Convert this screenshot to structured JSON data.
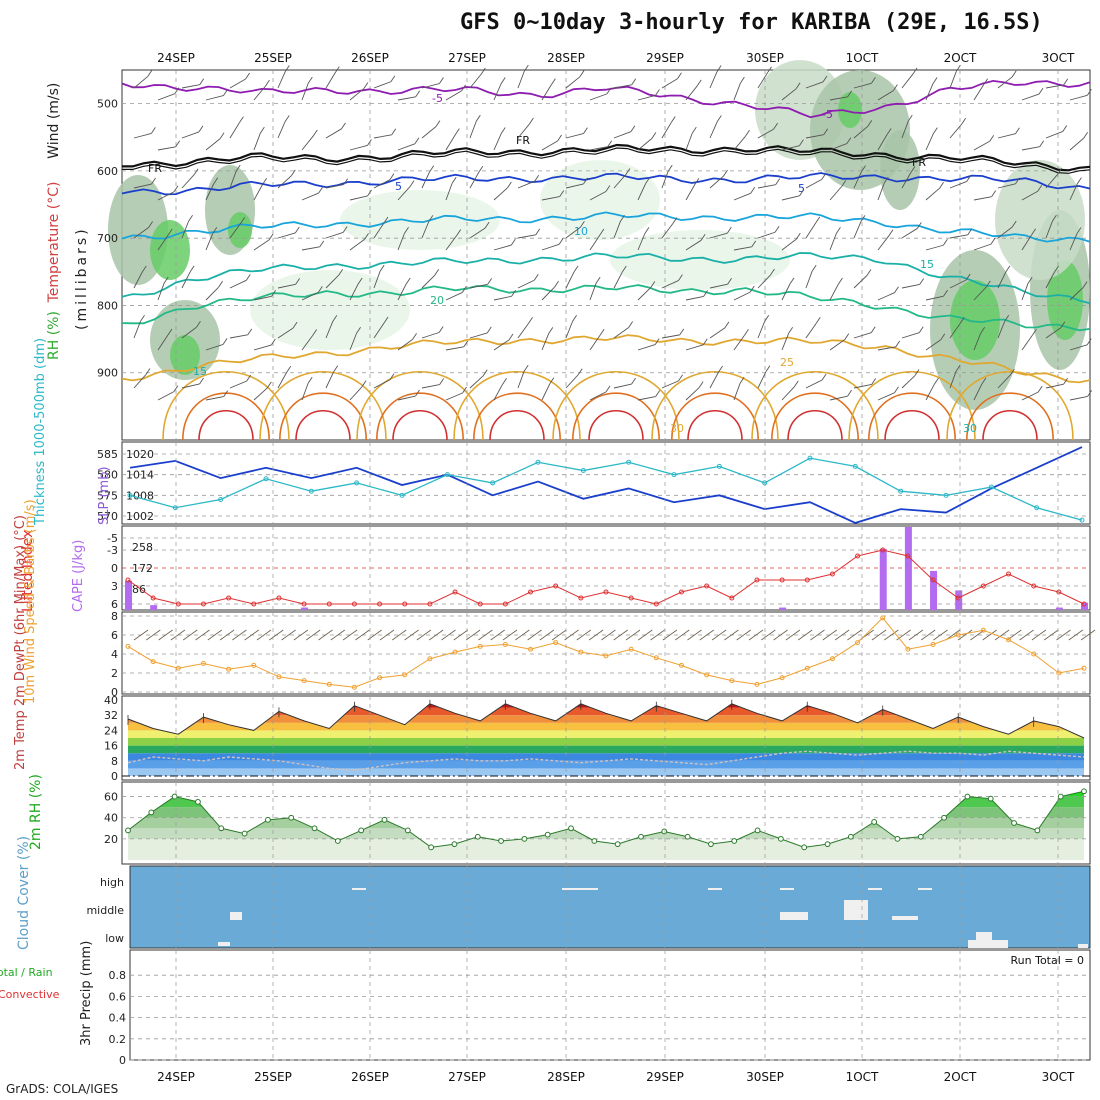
{
  "title": "GFS 0~10day 3-hourly for KARIBA (29E, 16.5S)",
  "credit": "GrADS: COLA/IGES",
  "dates": [
    "24SEP",
    "25SEP",
    "26SEP",
    "27SEP",
    "28SEP",
    "29SEP",
    "30SEP",
    "1OCT",
    "2OCT",
    "3OCT"
  ],
  "colors": {
    "wind_barb": "#555555",
    "rh_light": "#e8f4e6",
    "rh_mid": "#c8dcc8",
    "rh_dark": "#a8c4a8",
    "rh_green": "#66cc66",
    "slp": "#1a3fcc",
    "thickness": "#2bb8c8",
    "lifted_index": "#e03030",
    "cape": "#b36bf0",
    "wind10": "#f0a030",
    "rh2m": "#33cc33",
    "cloud": "#6aaad6",
    "cloud_patch": "#f0f0f0"
  },
  "chart_data": [
    {
      "panel": "upper-air",
      "type": "heatmap",
      "ylabel_parts": [
        "RH (%)",
        "Temperature (°C)",
        "Wind (m/s)"
      ],
      "ylabel_units": "(millibars)",
      "yticks": [
        500,
        600,
        700,
        800,
        900
      ],
      "ylim": [
        1000,
        450
      ],
      "contour_labels": [
        {
          "text": "-5",
          "level": "480"
        },
        {
          "text": "-5",
          "level": "510"
        },
        {
          "text": "FR",
          "level": "565"
        },
        {
          "text": "FR",
          "level": "560"
        },
        {
          "text": "FR",
          "level": "590"
        },
        {
          "text": "5",
          "level": "610"
        },
        {
          "text": "5",
          "level": "615"
        },
        {
          "text": "10",
          "level": "680"
        },
        {
          "text": "15",
          "level": "830"
        },
        {
          "text": "15",
          "level": "725"
        },
        {
          "text": "20",
          "level": "775"
        },
        {
          "text": "25",
          "level": "860"
        },
        {
          "text": "30",
          "level": "940"
        },
        {
          "text": "30",
          "level": "940"
        }
      ],
      "temp_contours": [
        {
          "label": "-5",
          "color": "#8e1cb0",
          "levels": [
            470,
            475,
            485,
            478,
            482,
            480,
            486,
            478,
            490,
            500,
            520,
            505,
            478,
            470,
            468
          ]
        },
        {
          "label": "FR",
          "color": "#111111",
          "levels": [
            590,
            585,
            580,
            580,
            577,
            572,
            570,
            568,
            568,
            566,
            572,
            575,
            580,
            590,
            595
          ]
        },
        {
          "label": "5",
          "color": "#1a3fcc",
          "levels": [
            630,
            628,
            622,
            618,
            614,
            612,
            610,
            610,
            612,
            612,
            610,
            608,
            612,
            615,
            625
          ]
        },
        {
          "label": "10",
          "color": "#19a4dc",
          "levels": [
            700,
            690,
            684,
            678,
            676,
            672,
            670,
            668,
            668,
            668,
            670,
            675,
            690,
            700,
            700
          ]
        },
        {
          "label": "15",
          "color": "#1ab0a8",
          "levels": [
            790,
            760,
            748,
            740,
            738,
            735,
            730,
            728,
            730,
            730,
            728,
            730,
            760,
            780,
            790
          ]
        },
        {
          "label": "20",
          "color": "#22b888",
          "levels": [
            830,
            800,
            790,
            780,
            782,
            775,
            775,
            775,
            778,
            776,
            790,
            800,
            820,
            830,
            830
          ]
        },
        {
          "label": "25",
          "color": "#e0a830",
          "levels": [
            910,
            890,
            880,
            870,
            860,
            855,
            850,
            850,
            852,
            852,
            855,
            860,
            880,
            900,
            910
          ]
        }
      ]
    },
    {
      "panel": "slp-thickness",
      "type": "line",
      "ylabel_left": "Thickness 1000-500mb (dm)",
      "ylabel_right": "SLP (mb)",
      "yticks_left": [
        570,
        575,
        580,
        585
      ],
      "yticks_right": [
        1002,
        1008,
        1014,
        1020
      ],
      "series": [
        {
          "name": "SLP",
          "values": [
            1016,
            1018,
            1013,
            1016,
            1013,
            1016,
            1011,
            1014,
            1008,
            1012,
            1007,
            1010,
            1006,
            1008,
            1004,
            1006,
            1000,
            1004,
            1003,
            1010,
            1016,
            1022
          ]
        },
        {
          "name": "Thickness",
          "values": [
            575,
            572,
            574,
            579,
            576,
            578,
            575,
            580,
            578,
            583,
            581,
            583,
            580,
            582,
            578,
            584,
            582,
            576,
            575,
            577,
            572,
            569
          ]
        }
      ]
    },
    {
      "panel": "stability",
      "type": "bar",
      "ylabel_left": "Lifted Index",
      "ylabel_right": "CAPE (J/kg)",
      "yticks_left": [
        -5,
        -3,
        0,
        3,
        6
      ],
      "yticks_right": [
        86,
        172,
        258
      ],
      "lifted_index": [
        2,
        5,
        6,
        6,
        5,
        6,
        5,
        6,
        6,
        6,
        6,
        6,
        6,
        4,
        6,
        6,
        4,
        3,
        5,
        4,
        5,
        6,
        4,
        3,
        5,
        2,
        2,
        2,
        1,
        -2,
        -3,
        -2,
        2,
        5,
        3,
        1,
        3,
        4,
        6
      ],
      "cape": [
        120,
        20,
        0,
        0,
        0,
        0,
        0,
        10,
        0,
        0,
        0,
        0,
        0,
        0,
        0,
        0,
        0,
        0,
        0,
        0,
        0,
        0,
        0,
        0,
        0,
        0,
        10,
        0,
        0,
        0,
        250,
        340,
        160,
        80,
        0,
        0,
        0,
        10,
        30
      ]
    },
    {
      "panel": "wind10m",
      "type": "line",
      "ylabel": "10m Wind Speed & Barbs (m/s)",
      "yticks": [
        0,
        2,
        4,
        6,
        8
      ],
      "values": [
        4.8,
        3.2,
        2.5,
        3.0,
        2.4,
        2.8,
        1.6,
        1.2,
        0.8,
        0.5,
        1.5,
        1.8,
        3.5,
        4.2,
        4.8,
        5.0,
        4.5,
        5.2,
        4.2,
        3.8,
        4.5,
        3.6,
        2.8,
        1.8,
        1.2,
        0.8,
        1.5,
        2.5,
        3.5,
        5.2,
        7.8,
        4.5,
        5.0,
        6.0,
        6.5,
        5.5,
        4.0,
        2.0,
        2.5
      ]
    },
    {
      "panel": "temperature",
      "type": "area",
      "ylabel": "2m Temp 2m DewPt (6hr Min/Max) (°C)",
      "yticks": [
        0,
        8,
        16,
        24,
        32,
        40
      ],
      "temp": [
        30,
        25,
        22,
        31,
        27,
        24,
        34,
        29,
        25,
        37,
        32,
        27,
        38,
        33,
        29,
        38,
        33,
        29,
        38,
        33,
        29,
        37,
        33,
        29,
        38,
        33,
        29,
        37,
        33,
        28,
        35,
        30,
        25,
        31,
        26,
        22,
        29,
        26,
        20
      ],
      "dewpt": [
        7,
        10,
        9,
        8,
        10,
        9,
        8,
        6,
        4,
        3,
        5,
        7,
        8,
        9,
        8,
        8,
        9,
        8,
        7,
        8,
        9,
        8,
        7,
        6,
        8,
        10,
        12,
        13,
        12,
        11,
        12,
        13,
        12,
        12,
        11,
        13,
        12,
        11,
        10
      ]
    },
    {
      "panel": "rh2m",
      "type": "area",
      "ylabel": "2m RH (%)",
      "yticks": [
        20,
        40,
        60
      ],
      "values": [
        28,
        45,
        60,
        55,
        30,
        25,
        38,
        40,
        30,
        18,
        28,
        38,
        28,
        12,
        15,
        22,
        18,
        20,
        24,
        30,
        18,
        15,
        22,
        27,
        22,
        15,
        18,
        28,
        20,
        12,
        15,
        22,
        36,
        20,
        22,
        40,
        60,
        58,
        35,
        28,
        60,
        65
      ]
    },
    {
      "panel": "cloud",
      "type": "heatmap",
      "ylabel": "Cloud Cover (%)",
      "rows": [
        "high",
        "middle",
        "low"
      ]
    },
    {
      "panel": "precip",
      "type": "bar",
      "ylabel": "3hr Precip (mm)",
      "legend": [
        "Total / Rain",
        "Convective"
      ],
      "yticks": [
        0,
        0.2,
        0.4,
        0.6,
        0.8
      ],
      "ylim": [
        0,
        1
      ],
      "run_total": "Run Total = 0",
      "values": []
    }
  ]
}
